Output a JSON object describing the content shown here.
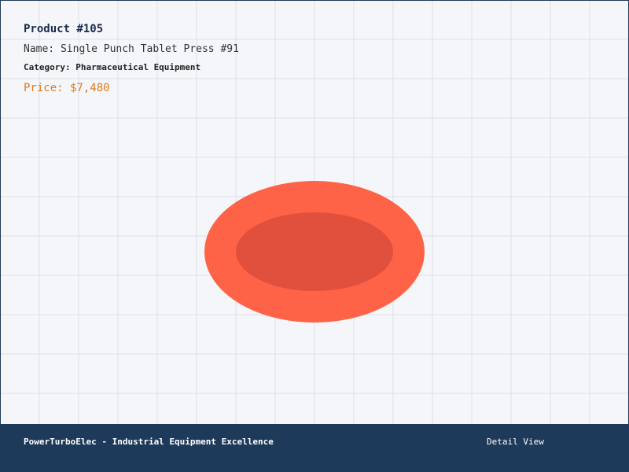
{
  "product": {
    "title": "Product #105",
    "name": "Name: Single Punch Tablet Press #91",
    "category": "Category: Pharmaceutical Equipment",
    "price": "Price: $7,480"
  },
  "footer": {
    "brand": "PowerTurboElec - Industrial Equipment Excellence",
    "view": "Detail View"
  }
}
